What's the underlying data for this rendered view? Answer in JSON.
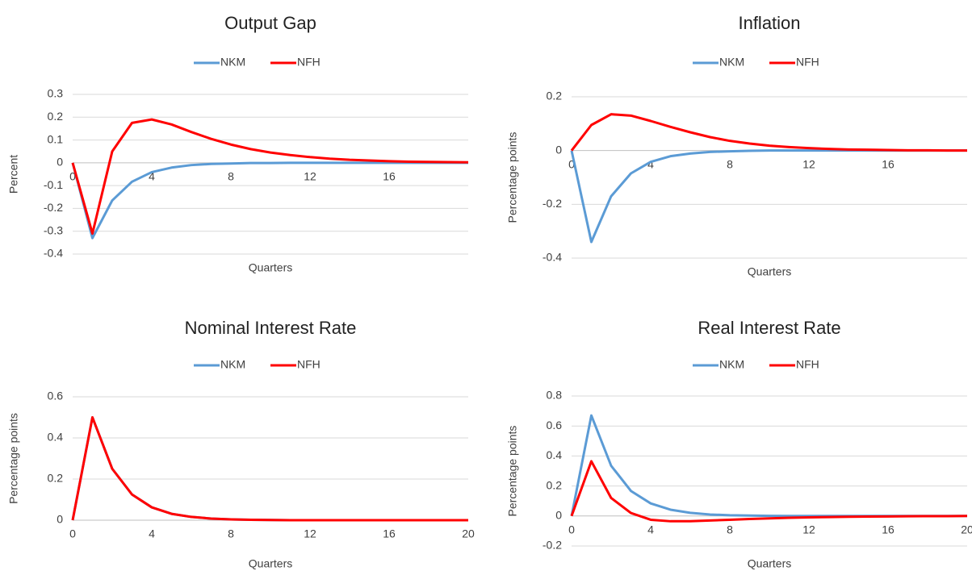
{
  "chart_data": [
    {
      "type": "line",
      "title": "Output Gap",
      "xlabel": "Quarters",
      "ylabel": "Percent",
      "x": [
        0,
        1,
        2,
        3,
        4,
        5,
        6,
        7,
        8,
        9,
        10,
        11,
        12,
        13,
        14,
        15,
        16,
        17,
        18,
        19,
        20
      ],
      "xlim": [
        0,
        20
      ],
      "xticks": [
        0,
        4,
        8,
        12,
        16
      ],
      "ylim": [
        -0.4,
        0.3
      ],
      "yticks": [
        -0.4,
        -0.3,
        -0.2,
        -0.1,
        0,
        0.1,
        0.2,
        0.3
      ],
      "grid": true,
      "series": [
        {
          "name": "NKM",
          "color": "#5b9bd5",
          "values": [
            0,
            -0.33,
            -0.165,
            -0.083,
            -0.041,
            -0.021,
            -0.01,
            -0.005,
            -0.003,
            -0.001,
            -0.001,
            0,
            0,
            0,
            0,
            0,
            0,
            0,
            0,
            0,
            0
          ]
        },
        {
          "name": "NFH",
          "color": "#ff0000",
          "values": [
            0,
            -0.31,
            0.05,
            0.175,
            0.19,
            0.168,
            0.135,
            0.105,
            0.08,
            0.06,
            0.045,
            0.034,
            0.025,
            0.018,
            0.013,
            0.01,
            0.007,
            0.005,
            0.004,
            0.003,
            0.002
          ]
        }
      ]
    },
    {
      "type": "line",
      "title": "Inflation",
      "xlabel": "Quarters",
      "ylabel": "Percentage points",
      "x": [
        0,
        1,
        2,
        3,
        4,
        5,
        6,
        7,
        8,
        9,
        10,
        11,
        12,
        13,
        14,
        15,
        16,
        17,
        18,
        19,
        20
      ],
      "xlim": [
        0,
        20
      ],
      "xticks": [
        0,
        4,
        8,
        12,
        16
      ],
      "ylim": [
        -0.4,
        0.2
      ],
      "yticks": [
        -0.4,
        -0.2,
        0,
        0.2
      ],
      "grid": true,
      "series": [
        {
          "name": "NKM",
          "color": "#5b9bd5",
          "values": [
            0,
            -0.34,
            -0.17,
            -0.085,
            -0.042,
            -0.021,
            -0.011,
            -0.005,
            -0.003,
            -0.001,
            0,
            0,
            0,
            0,
            0,
            0,
            0,
            0,
            0,
            0,
            0
          ]
        },
        {
          "name": "NFH",
          "color": "#ff0000",
          "values": [
            0,
            0.095,
            0.135,
            0.13,
            0.11,
            0.088,
            0.068,
            0.05,
            0.036,
            0.026,
            0.018,
            0.013,
            0.009,
            0.006,
            0.004,
            0.003,
            0.002,
            0.001,
            0.001,
            0,
            0
          ]
        }
      ]
    },
    {
      "type": "line",
      "title": "Nominal Interest Rate",
      "xlabel": "Quarters",
      "ylabel": "Percentage points",
      "x": [
        0,
        1,
        2,
        3,
        4,
        5,
        6,
        7,
        8,
        9,
        10,
        11,
        12,
        13,
        14,
        15,
        16,
        17,
        18,
        19,
        20
      ],
      "xlim": [
        0,
        20
      ],
      "xticks": [
        0,
        4,
        8,
        12,
        16,
        20
      ],
      "ylim": [
        0,
        0.6
      ],
      "yticks": [
        0,
        0.2,
        0.4,
        0.6
      ],
      "grid": true,
      "series": [
        {
          "name": "NKM",
          "color": "#5b9bd5",
          "values": [
            0,
            0.5,
            0.25,
            0.125,
            0.0625,
            0.031,
            0.016,
            0.008,
            0.004,
            0.002,
            0.001,
            0,
            0,
            0,
            0,
            0,
            0,
            0,
            0,
            0,
            0
          ]
        },
        {
          "name": "NFH",
          "color": "#ff0000",
          "values": [
            0,
            0.5,
            0.25,
            0.125,
            0.0625,
            0.031,
            0.016,
            0.008,
            0.004,
            0.002,
            0.001,
            0,
            0,
            0,
            0,
            0,
            0,
            0,
            0,
            0,
            0
          ]
        }
      ]
    },
    {
      "type": "line",
      "title": "Real Interest Rate",
      "xlabel": "Quarters",
      "ylabel": "Percentage points",
      "x": [
        0,
        1,
        2,
        3,
        4,
        5,
        6,
        7,
        8,
        9,
        10,
        11,
        12,
        13,
        14,
        15,
        16,
        17,
        18,
        19,
        20
      ],
      "xlim": [
        0,
        20
      ],
      "xticks": [
        0,
        4,
        8,
        12,
        16,
        20
      ],
      "ylim": [
        -0.2,
        0.8
      ],
      "yticks": [
        -0.2,
        0,
        0.2,
        0.4,
        0.6,
        0.8
      ],
      "grid": true,
      "series": [
        {
          "name": "NKM",
          "color": "#5b9bd5",
          "values": [
            0,
            0.67,
            0.335,
            0.167,
            0.084,
            0.042,
            0.021,
            0.01,
            0.005,
            0.003,
            0.001,
            0,
            0,
            0,
            0,
            0,
            0,
            0,
            0,
            0,
            0
          ]
        },
        {
          "name": "NFH",
          "color": "#ff0000",
          "values": [
            0,
            0.365,
            0.12,
            0.02,
            -0.025,
            -0.035,
            -0.035,
            -0.03,
            -0.025,
            -0.02,
            -0.016,
            -0.012,
            -0.009,
            -0.007,
            -0.005,
            -0.004,
            -0.003,
            -0.002,
            -0.001,
            -0.001,
            0
          ]
        }
      ]
    }
  ]
}
